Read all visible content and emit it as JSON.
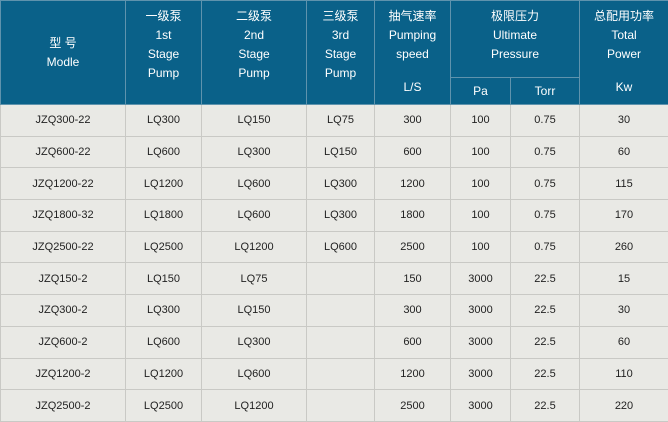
{
  "header": {
    "model": [
      "型 号",
      "Modle"
    ],
    "stage1": [
      "一级泵",
      "1st",
      "Stage",
      "Pump"
    ],
    "stage2": [
      "二级泵",
      "2nd",
      "Stage",
      "Pump"
    ],
    "stage3": [
      "三级泵",
      "3rd",
      "Stage",
      "Pump"
    ],
    "speed": [
      "抽气速率",
      "Pumping",
      "speed"
    ],
    "speed_unit": "L/S",
    "pressure": [
      "极限压力",
      "Ultimate",
      "Pressure"
    ],
    "pa": "Pa",
    "torr": "Torr",
    "power": [
      "总配用功率",
      "Total",
      "Power"
    ],
    "power_unit": "Kw"
  },
  "rows": [
    [
      "JZQ300-22",
      "LQ300",
      "LQ150",
      "LQ75",
      "300",
      "100",
      "0.75",
      "30"
    ],
    [
      "JZQ600-22",
      "LQ600",
      "LQ300",
      "LQ150",
      "600",
      "100",
      "0.75",
      "60"
    ],
    [
      "JZQ1200-22",
      "LQ1200",
      "LQ600",
      "LQ300",
      "1200",
      "100",
      "0.75",
      "115"
    ],
    [
      "JZQ1800-32",
      "LQ1800",
      "LQ600",
      "LQ300",
      "1800",
      "100",
      "0.75",
      "170"
    ],
    [
      "JZQ2500-22",
      "LQ2500",
      "LQ1200",
      "LQ600",
      "2500",
      "100",
      "0.75",
      "260"
    ],
    [
      "JZQ150-2",
      "LQ150",
      "LQ75",
      "",
      "150",
      "3000",
      "22.5",
      "15"
    ],
    [
      "JZQ300-2",
      "LQ300",
      "LQ150",
      "",
      "300",
      "3000",
      "22.5",
      "30"
    ],
    [
      "JZQ600-2",
      "LQ600",
      "LQ300",
      "",
      "600",
      "3000",
      "22.5",
      "60"
    ],
    [
      "JZQ1200-2",
      "LQ1200",
      "LQ600",
      "",
      "1200",
      "3000",
      "22.5",
      "110"
    ],
    [
      "JZQ2500-2",
      "LQ2500",
      "LQ1200",
      "",
      "2500",
      "3000",
      "22.5",
      "220"
    ]
  ],
  "colors": {
    "header_bg": "#0a6189",
    "body_bg": "#e9e9e5"
  }
}
